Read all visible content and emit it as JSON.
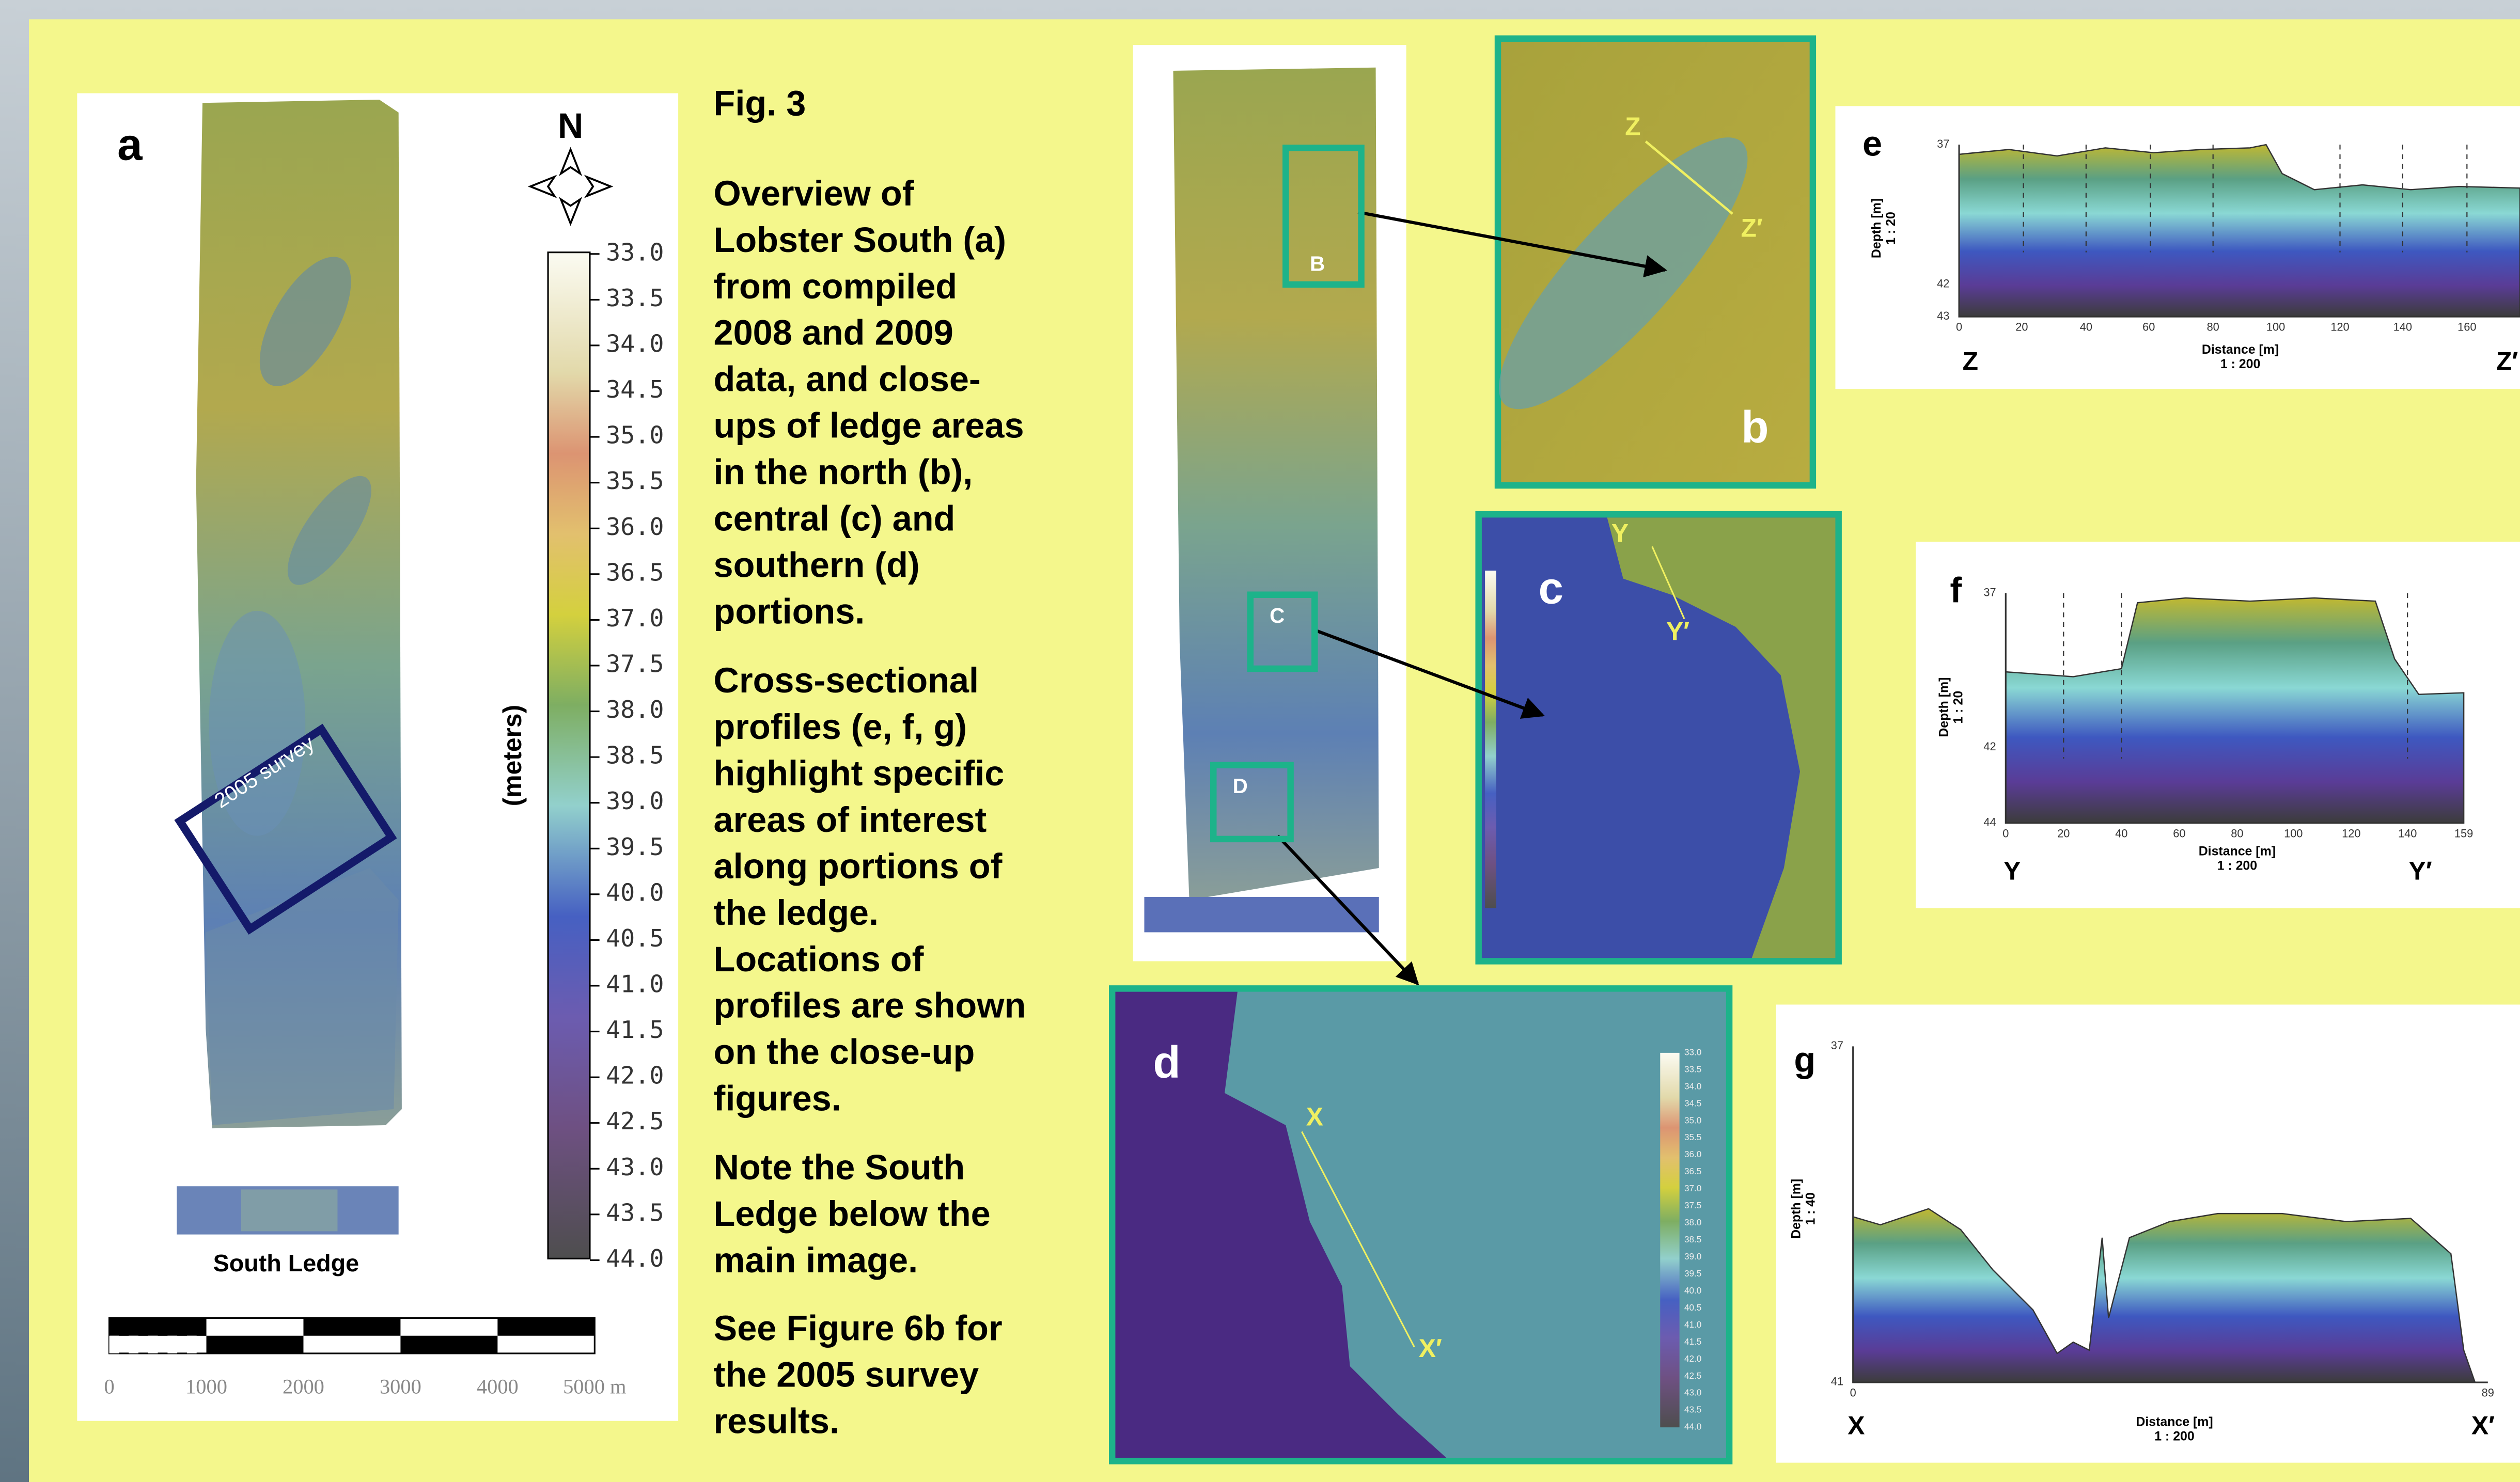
{
  "figure_label": "Fig. 3",
  "caption": [
    [
      "Overview of",
      "Lobster South (a)",
      "from compiled",
      "2008 and 2009",
      "data, and close-",
      "ups of ledge areas",
      "in the north (b),",
      "central (c) and",
      "southern (d)",
      "portions."
    ],
    [
      "Cross-sectional",
      "profiles (e, f, g)",
      "highlight specific",
      "areas of interest",
      "along portions of",
      "the ledge.",
      "Locations of",
      "profiles are shown",
      "on the close-up",
      "figures."
    ],
    [
      "Note the South",
      "Ledge below the",
      "main image."
    ],
    [
      "See Figure 6b for",
      "the 2005 survey",
      "results."
    ]
  ],
  "panel_a": {
    "letter": "a",
    "north": "N",
    "colorbar_unit": "(meters)",
    "colorbar_labels": [
      "33.0",
      "33.5",
      "34.0",
      "34.5",
      "35.0",
      "35.5",
      "36.0",
      "36.5",
      "37.0",
      "37.5",
      "38.0",
      "38.5",
      "39.0",
      "39.5",
      "40.0",
      "40.5",
      "41.0",
      "41.5",
      "42.0",
      "42.5",
      "43.0",
      "43.5",
      "44.0"
    ],
    "survey_label": "2005 survey",
    "south_ledge": "South Ledge",
    "scale_labels": [
      "0",
      "1000",
      "2000",
      "3000",
      "4000",
      "5000 m"
    ]
  },
  "overview": {
    "markers": [
      "B",
      "C",
      "D"
    ]
  },
  "closeups": [
    {
      "letter": "b",
      "start": "Z",
      "end": "Z′"
    },
    {
      "letter": "c",
      "start": "Y",
      "end": "Y′"
    },
    {
      "letter": "d",
      "start": "X",
      "end": "X′"
    }
  ],
  "profiles": [
    {
      "letter": "e",
      "y_label": "Depth [m]",
      "y_scale": "1 : 20",
      "y_ticks": [
        "37",
        "42",
        "43"
      ],
      "x_ticks": [
        "0",
        "20",
        "40",
        "60",
        "80",
        "100",
        "120",
        "140",
        "160"
      ],
      "x_label": "Distance [m]",
      "x_scale": "1 : 200",
      "start": "Z",
      "end": "Z′"
    },
    {
      "letter": "f",
      "y_label": "Depth [m]",
      "y_scale": "1 : 20",
      "y_ticks": [
        "37",
        "42",
        "44"
      ],
      "x_ticks": [
        "0",
        "20",
        "40",
        "60",
        "80",
        "100",
        "120",
        "140",
        "159"
      ],
      "x_label": "Distance [m]",
      "x_scale": "1 : 200",
      "start": "Y",
      "end": "Y′"
    },
    {
      "letter": "g",
      "y_label": "Depth [m]",
      "y_scale": "1 : 40",
      "y_ticks": [
        "37",
        "41"
      ],
      "x_ticks": [
        "0",
        "89"
      ],
      "x_label": "Distance [m]",
      "x_scale": "1 : 200",
      "start": "X",
      "end": "X′"
    }
  ]
}
